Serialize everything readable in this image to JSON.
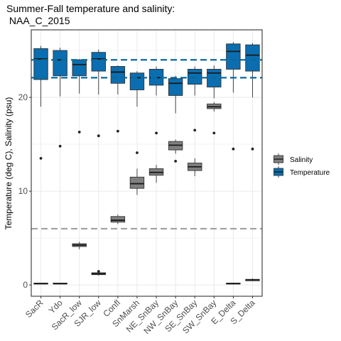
{
  "chart_data": {
    "type": "boxplot",
    "title_lines": [
      "Summer-Fall temperature and salinity:",
      " NAA_C_2015"
    ],
    "xlabel": "",
    "ylabel": "Temperature (deg C), Salinity (psu)",
    "ylim": [
      -1.2,
      27.2
    ],
    "y_ticks": [
      0,
      10,
      20
    ],
    "y_minor_ticks": [
      5,
      15,
      25
    ],
    "categories": [
      "SacR",
      "Ydo",
      "SacR_low",
      "SJR_low",
      "Confl",
      "SnMarsh",
      "NE_SnBay",
      "NW_SnBay",
      "SE_SnBay",
      "SW_SnBay",
      "E_Delta",
      "S_Delta"
    ],
    "grid": true,
    "legend_position": "right",
    "colors": {
      "Salinity": "#808080",
      "Temperature": "#0a6eb0",
      "temperature_ref": "#0a6a9e",
      "salinity_ref": "#a0a0a0",
      "grid": "#ebebeb",
      "panel_border": "#333333"
    },
    "reference_lines": [
      {
        "y": 24.0,
        "color_key": "temperature_ref",
        "style": "dashed"
      },
      {
        "y": 22.1,
        "color_key": "temperature_ref",
        "style": "dashed"
      },
      {
        "y": 6.0,
        "color_key": "salinity_ref",
        "style": "dashed"
      }
    ],
    "series": [
      {
        "name": "Salinity",
        "boxes": [
          {
            "category": "SacR",
            "min": 0.1,
            "q1": 0.1,
            "median": 0.15,
            "q3": 0.2,
            "max": 0.2,
            "outliers": []
          },
          {
            "category": "Ydo",
            "min": 0.1,
            "q1": 0.1,
            "median": 0.15,
            "q3": 0.2,
            "max": 0.2,
            "outliers": []
          },
          {
            "category": "SacR_low",
            "min": 3.8,
            "q1": 4.1,
            "median": 4.25,
            "q3": 4.4,
            "max": 4.6,
            "outliers": []
          },
          {
            "category": "SJR_low",
            "min": 1.0,
            "q1": 1.1,
            "median": 1.2,
            "q3": 1.3,
            "max": 1.4,
            "outliers": [
              1.45
            ]
          },
          {
            "category": "Confl",
            "min": 6.5,
            "q1": 6.7,
            "median": 6.9,
            "q3": 7.3,
            "max": 7.5,
            "outliers": []
          },
          {
            "category": "SnMarsh",
            "min": 9.6,
            "q1": 10.3,
            "median": 10.8,
            "q3": 11.5,
            "max": 12.4,
            "outliers": []
          },
          {
            "category": "NE_SnBay",
            "min": 10.9,
            "q1": 11.7,
            "median": 12.0,
            "q3": 12.4,
            "max": 12.8,
            "outliers": []
          },
          {
            "category": "NW_SnBay",
            "min": 14.0,
            "q1": 14.4,
            "median": 14.9,
            "q3": 15.3,
            "max": 15.5,
            "outliers": []
          },
          {
            "category": "SE_SnBay",
            "min": 11.6,
            "q1": 12.2,
            "median": 12.6,
            "q3": 13.0,
            "max": 13.5,
            "outliers": []
          },
          {
            "category": "SW_SnBay",
            "min": 18.5,
            "q1": 18.8,
            "median": 19.0,
            "q3": 19.3,
            "max": 19.5,
            "outliers": []
          },
          {
            "category": "E_Delta",
            "min": 0.05,
            "q1": 0.1,
            "median": 0.15,
            "q3": 0.2,
            "max": 0.25,
            "outliers": []
          },
          {
            "category": "S_Delta",
            "min": 0.4,
            "q1": 0.45,
            "median": 0.55,
            "q3": 0.6,
            "max": 0.7,
            "outliers": []
          }
        ]
      },
      {
        "name": "Temperature",
        "boxes": [
          {
            "category": "SacR",
            "min": 19.0,
            "q1": 21.9,
            "median": 24.1,
            "q3": 25.2,
            "max": 25.5,
            "outliers": [
              13.5
            ]
          },
          {
            "category": "Ydo",
            "min": 20.1,
            "q1": 22.3,
            "median": 24.0,
            "q3": 25.0,
            "max": 25.3,
            "outliers": [
              14.8
            ]
          },
          {
            "category": "SacR_low",
            "min": 20.4,
            "q1": 22.3,
            "median": 23.5,
            "q3": 24.0,
            "max": 24.1,
            "outliers": [
              16.3
            ]
          },
          {
            "category": "SJR_low",
            "min": 20.3,
            "q1": 22.8,
            "median": 24.1,
            "q3": 24.8,
            "max": 25.1,
            "outliers": [
              15.9
            ]
          },
          {
            "category": "Confl",
            "min": 20.3,
            "q1": 21.5,
            "median": 22.7,
            "q3": 23.3,
            "max": 23.4,
            "outliers": [
              16.4
            ]
          },
          {
            "category": "SnMarsh",
            "min": 19.0,
            "q1": 20.8,
            "median": 22.1,
            "q3": 22.6,
            "max": 22.8,
            "outliers": [
              14.1
            ]
          },
          {
            "category": "NE_SnBay",
            "min": 20.2,
            "q1": 21.3,
            "median": 22.1,
            "q3": 23.0,
            "max": 23.3,
            "outliers": [
              16.2
            ]
          },
          {
            "category": "NW_SnBay",
            "min": 18.3,
            "q1": 20.2,
            "median": 21.5,
            "q3": 22.0,
            "max": 22.3,
            "outliers": [
              13.2
            ]
          },
          {
            "category": "SE_SnBay",
            "min": 20.2,
            "q1": 21.4,
            "median": 22.6,
            "q3": 23.0,
            "max": 23.3,
            "outliers": [
              16.5
            ]
          },
          {
            "category": "SW_SnBay",
            "min": 19.9,
            "q1": 21.1,
            "median": 22.6,
            "q3": 23.0,
            "max": 23.4,
            "outliers": [
              16.2
            ]
          },
          {
            "category": "E_Delta",
            "min": 20.5,
            "q1": 23.0,
            "median": 24.9,
            "q3": 25.7,
            "max": 25.9,
            "outliers": [
              14.5
            ]
          },
          {
            "category": "S_Delta",
            "min": 20.0,
            "q1": 22.8,
            "median": 24.5,
            "q3": 25.6,
            "max": 25.8,
            "outliers": [
              14.5
            ]
          }
        ]
      }
    ]
  }
}
